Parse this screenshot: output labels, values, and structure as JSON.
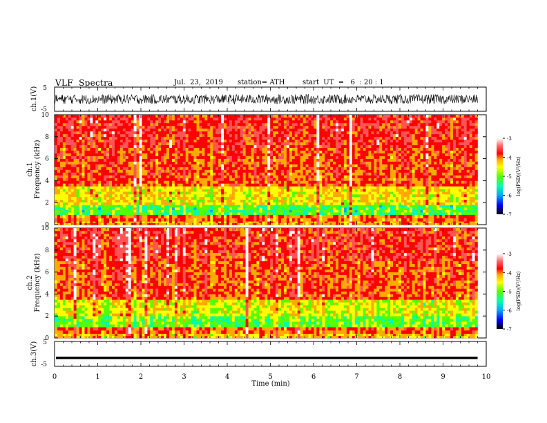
{
  "header": {
    "title": "VLF  Spectra",
    "date": "Jul.  23,  2019",
    "station": "station= ATH",
    "start": "start  UT  =   6  : 20 : 1"
  },
  "colors": {
    "spectrogram_scale": [
      "#000000",
      "#0000ff",
      "#00aaff",
      "#00ffaa",
      "#55ff00",
      "#ffff00",
      "#ffaa00",
      "#ff0000",
      "#ff5555",
      "#ffffff"
    ],
    "trace": "#000000"
  },
  "chart_data": [
    {
      "type": "line",
      "name": "ch1-waveform",
      "ylabel": "ch.1(V)",
      "ylim": [
        -5,
        5
      ],
      "yticks": [
        "5",
        "-5"
      ],
      "x_range_min": [
        0,
        9.8
      ],
      "waveform_amplitude_band": [
        -2,
        2
      ]
    },
    {
      "type": "heatmap",
      "name": "ch1-spectrogram",
      "ylabel_channel": "ch.1",
      "ylabel": "Frequency  (kHz)",
      "ylim": [
        0,
        10
      ],
      "yticks": [
        "0",
        "2",
        "4",
        "6",
        "8",
        "10"
      ],
      "x_range_min": [
        0,
        9.8
      ],
      "colorbar": {
        "label": "log(PSD)(V²/Hz)",
        "range": [
          -7,
          -3
        ],
        "ticks": [
          "-3",
          "-4",
          "-5",
          "-6",
          "-7"
        ]
      },
      "frequency_bands_kHz": [
        {
          "from": 0,
          "to": 0.3,
          "log_psd": -4.4
        },
        {
          "from": 0.3,
          "to": 0.9,
          "log_psd": -4.2
        },
        {
          "from": 0.9,
          "to": 1.8,
          "log_psd": -5.3
        },
        {
          "from": 1.8,
          "to": 3.5,
          "log_psd": -4.7
        },
        {
          "from": 3.5,
          "to": 7.0,
          "log_psd": -4.1
        },
        {
          "from": 7.0,
          "to": 10.0,
          "log_psd": -3.9
        }
      ]
    },
    {
      "type": "heatmap",
      "name": "ch2-spectrogram",
      "ylabel_channel": "ch.2",
      "ylabel": "Frequency  (kHz)",
      "ylim": [
        0,
        10
      ],
      "yticks": [
        "0",
        "2",
        "4",
        "6",
        "8",
        "10"
      ],
      "x_range_min": [
        0,
        9.8
      ],
      "colorbar": {
        "label": "log(PSD)(V²/Hz)",
        "range": [
          -7,
          -3
        ],
        "ticks": [
          "-3",
          "-4",
          "-5",
          "-6",
          "-7"
        ]
      },
      "frequency_bands_kHz": [
        {
          "from": 0,
          "to": 0.4,
          "log_psd": -4.5
        },
        {
          "from": 0.4,
          "to": 1.0,
          "log_psd": -4.2
        },
        {
          "from": 1.0,
          "to": 2.0,
          "log_psd": -5.2
        },
        {
          "from": 2.0,
          "to": 3.5,
          "log_psd": -4.8
        },
        {
          "from": 3.5,
          "to": 7.0,
          "log_psd": -4.1
        },
        {
          "from": 7.0,
          "to": 10.0,
          "log_psd": -3.9
        }
      ]
    },
    {
      "type": "line",
      "name": "ch3-waveform",
      "ylabel": "ch.3(V)",
      "ylim": [
        -5,
        5
      ],
      "yticks": [
        "5",
        "-5"
      ],
      "x_range_min": [
        0,
        9.8
      ],
      "level_V": -1.6
    }
  ],
  "xaxis": {
    "label": "Time  (min)",
    "xlim": [
      0,
      10
    ],
    "ticks": [
      "0",
      "1",
      "2",
      "3",
      "4",
      "5",
      "6",
      "7",
      "8",
      "9",
      "10"
    ]
  }
}
